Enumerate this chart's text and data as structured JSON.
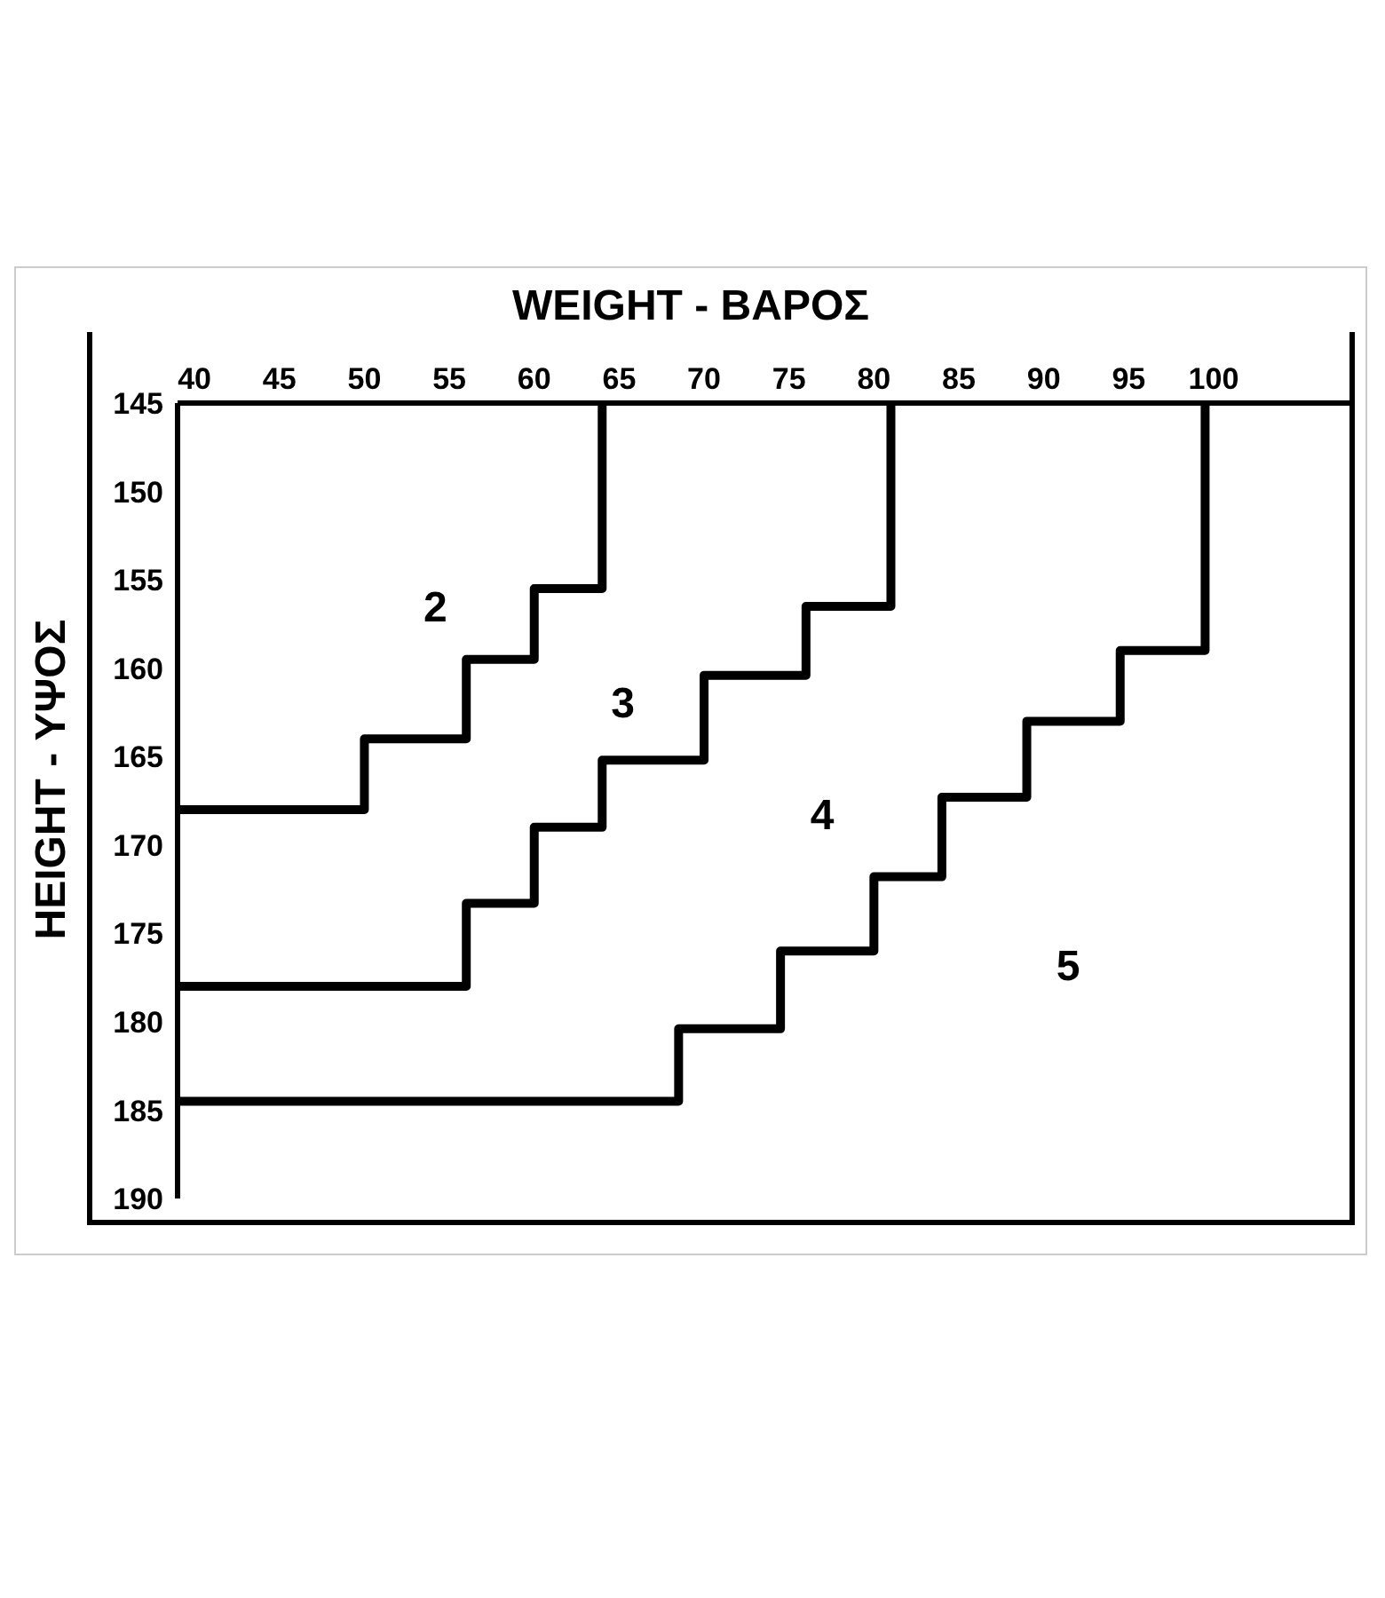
{
  "chart_data": {
    "type": "step",
    "xlabel": "WEIGHT - ΒΑΡΟΣ",
    "ylabel": "HEIGHT - ΥΨΟΣ",
    "xlim": [
      39,
      108
    ],
    "xticks": [
      40,
      45,
      50,
      55,
      60,
      65,
      70,
      75,
      80,
      85,
      90,
      95,
      100
    ],
    "ylim": [
      190,
      145
    ],
    "yticks": [
      145,
      150,
      155,
      160,
      165,
      170,
      175,
      180,
      185,
      190
    ],
    "grid": false,
    "legend": false,
    "marker": "none",
    "line_style": "solid",
    "series": [
      {
        "color": "#000000",
        "x": [
          39,
          50,
          56,
          60,
          64
        ],
        "values": [
          168,
          164,
          159.5,
          155.5,
          145
        ]
      },
      {
        "color": "#000000",
        "x": [
          39,
          56,
          60,
          64,
          70,
          76,
          81
        ],
        "values": [
          178,
          173.3,
          169,
          165.2,
          160.4,
          156.5,
          145
        ]
      },
      {
        "color": "#000000",
        "x": [
          39,
          68.5,
          74.5,
          80,
          84,
          89,
          94.5,
          99.5
        ],
        "values": [
          184.5,
          180.4,
          176,
          171.8,
          167.3,
          163,
          159,
          145
        ]
      }
    ],
    "annotations": [
      "2",
      "3",
      "4",
      "5"
    ]
  }
}
